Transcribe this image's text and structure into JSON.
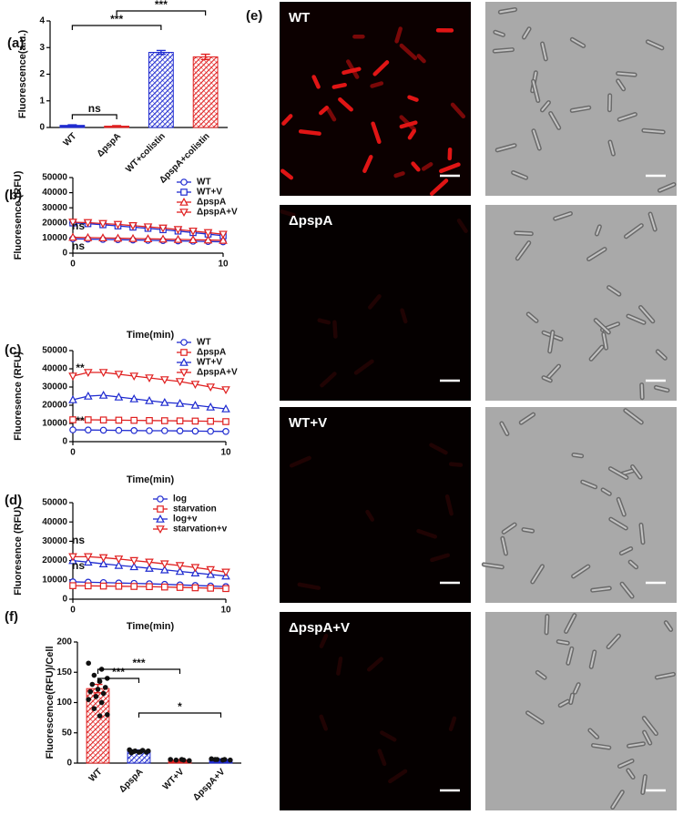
{
  "chart_data": [
    {
      "type": "bar",
      "label": "(a)",
      "ylabel": "Fluorescence(a.u.)",
      "categories": [
        "WT",
        "ΔpspA",
        "WT+colistin",
        "ΔpspA+colistin"
      ],
      "values": [
        0.08,
        0.05,
        2.82,
        2.65
      ],
      "errors": [
        0.02,
        0.02,
        0.07,
        0.1
      ],
      "colors": [
        "#1f2bd0",
        "#e02020",
        "#1f2bd0",
        "#e02020"
      ],
      "hatched": [
        false,
        false,
        true,
        true
      ],
      "ylim": [
        0,
        4
      ],
      "yticks": [
        0,
        1,
        2,
        3,
        4
      ],
      "annotations": [
        "ns",
        "***",
        "***"
      ]
    },
    {
      "type": "line",
      "label": "(b)",
      "ylabel": "Fluoresence (RFU)",
      "xlabel": "Time(min)",
      "x": [
        0,
        1,
        2,
        3,
        4,
        5,
        6,
        7,
        8,
        9,
        10
      ],
      "xlim": [
        0,
        10
      ],
      "xticks": [
        0,
        10
      ],
      "ylim": [
        0,
        50000
      ],
      "yticks": [
        0,
        10000,
        20000,
        30000,
        40000,
        50000
      ],
      "series": [
        {
          "name": "WT",
          "color": "#1f2bd0",
          "marker": "circle",
          "values": [
            9500,
            9300,
            9100,
            8900,
            8700,
            8500,
            8300,
            8100,
            7900,
            7700,
            7500
          ]
        },
        {
          "name": "WT+V",
          "color": "#1f2bd0",
          "marker": "square",
          "values": [
            20000,
            19500,
            18800,
            18000,
            17200,
            16400,
            15500,
            14600,
            13600,
            12600,
            11500
          ]
        },
        {
          "name": "ΔpspA",
          "color": "#e02020",
          "marker": "triangle-up",
          "values": [
            10500,
            10300,
            10100,
            9900,
            9700,
            9500,
            9300,
            9100,
            8900,
            8700,
            8500
          ]
        },
        {
          "name": "ΔpspA+V",
          "color": "#e02020",
          "marker": "triangle-down",
          "values": [
            20500,
            20200,
            19600,
            19000,
            18200,
            17400,
            16600,
            15600,
            14600,
            13600,
            12500
          ]
        }
      ],
      "annotations": [
        "ns",
        "ns"
      ]
    },
    {
      "type": "line",
      "label": "(c)",
      "ylabel": "Fluoresence (RFU)",
      "xlabel": "Time(min)",
      "x": [
        0,
        1,
        2,
        3,
        4,
        5,
        6,
        7,
        8,
        9,
        10
      ],
      "xlim": [
        0,
        10
      ],
      "xticks": [
        0,
        10
      ],
      "ylim": [
        0,
        50000
      ],
      "yticks": [
        0,
        10000,
        20000,
        30000,
        40000,
        50000
      ],
      "series": [
        {
          "name": "WT",
          "color": "#1f2bd0",
          "marker": "circle",
          "values": [
            6500,
            6400,
            6300,
            6200,
            6100,
            6000,
            6000,
            5900,
            5800,
            5700,
            5600
          ]
        },
        {
          "name": "ΔpspA",
          "color": "#e02020",
          "marker": "square",
          "values": [
            12000,
            12000,
            11900,
            11800,
            11700,
            11600,
            11500,
            11400,
            11300,
            11200,
            11000
          ]
        },
        {
          "name": "WT+V",
          "color": "#1f2bd0",
          "marker": "triangle-up",
          "values": [
            23000,
            25000,
            25500,
            24500,
            23500,
            22500,
            21500,
            21000,
            20000,
            19000,
            18000
          ]
        },
        {
          "name": "ΔpspA+V",
          "color": "#e02020",
          "marker": "triangle-down",
          "values": [
            36000,
            38000,
            38000,
            37000,
            36000,
            35000,
            34000,
            33000,
            31500,
            30000,
            28500
          ]
        }
      ],
      "annotations": [
        "**",
        "**"
      ]
    },
    {
      "type": "line",
      "label": "(d)",
      "ylabel": "Fluoresence (RFU)",
      "xlabel": "Time(min)",
      "x": [
        0,
        1,
        2,
        3,
        4,
        5,
        6,
        7,
        8,
        9,
        10
      ],
      "xlim": [
        0,
        10
      ],
      "xticks": [
        0,
        10
      ],
      "ylim": [
        0,
        50000
      ],
      "yticks": [
        0,
        10000,
        20000,
        30000,
        40000,
        50000
      ],
      "series": [
        {
          "name": "log",
          "color": "#1f2bd0",
          "marker": "circle",
          "values": [
            9000,
            8800,
            8600,
            8400,
            8200,
            8000,
            7700,
            7400,
            7100,
            6800,
            6500
          ]
        },
        {
          "name": "starvation",
          "color": "#e02020",
          "marker": "square",
          "values": [
            7000,
            6900,
            6800,
            6700,
            6600,
            6500,
            6300,
            6100,
            5900,
            5700,
            5500
          ]
        },
        {
          "name": "log+v",
          "color": "#1f2bd0",
          "marker": "triangle-up",
          "values": [
            20000,
            19200,
            18300,
            17500,
            16800,
            16000,
            15200,
            14400,
            13600,
            12800,
            12000
          ]
        },
        {
          "name": "starvation+v",
          "color": "#e02020",
          "marker": "triangle-down",
          "values": [
            22000,
            22000,
            21500,
            20800,
            20000,
            19200,
            18300,
            17400,
            16400,
            15300,
            14000
          ]
        }
      ],
      "annotations": [
        "ns",
        "ns"
      ]
    },
    {
      "type": "bar",
      "label": "(f)",
      "ylabel": "Fluorescence(RFU)/Cell",
      "categories": [
        "WT",
        "ΔpspA",
        "WT+V",
        "ΔpspA+V"
      ],
      "values": [
        123,
        20,
        5,
        6
      ],
      "errors": [
        7,
        1.5,
        0.8,
        0.8
      ],
      "colors": [
        "#e02020",
        "#1f2bd0",
        "#e02020",
        "#1f2bd0"
      ],
      "hatched": [
        true,
        true,
        false,
        false
      ],
      "points": [
        [
          165,
          155,
          145,
          140,
          135,
          130,
          125,
          122,
          118,
          115,
          110,
          105,
          100,
          90,
          80,
          78
        ],
        [
          22,
          21,
          20,
          20,
          19,
          19,
          18,
          18,
          17
        ],
        [
          6,
          5,
          5,
          4,
          6
        ],
        [
          7,
          6,
          6,
          5,
          5,
          6
        ]
      ],
      "ylim": [
        0,
        200
      ],
      "yticks": [
        0,
        50,
        100,
        150,
        200
      ],
      "annotations": [
        "***",
        "***",
        "*"
      ]
    }
  ],
  "panel_e": {
    "label": "(e)",
    "rows": [
      "WT",
      "ΔpspA",
      "WT+V",
      "ΔpspA+V"
    ]
  }
}
